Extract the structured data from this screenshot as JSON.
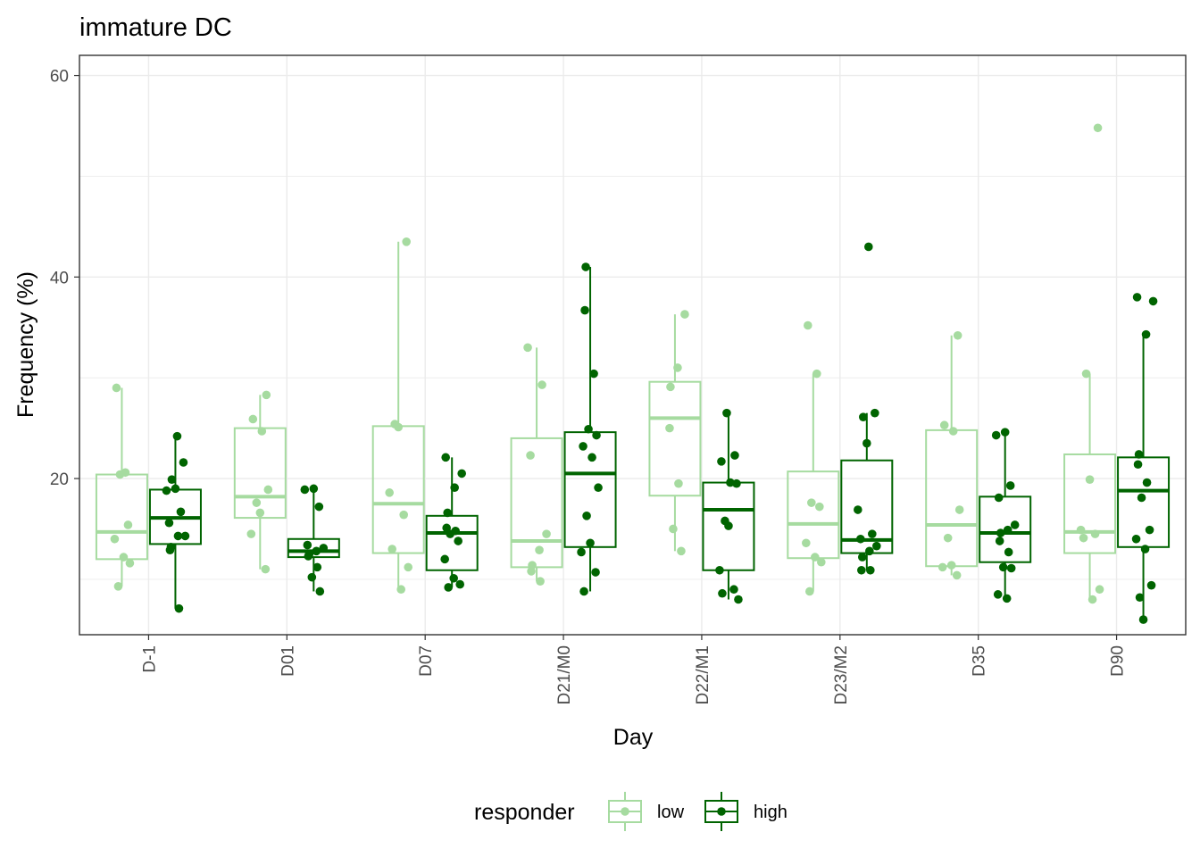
{
  "chart_data": {
    "type": "box",
    "title": "immature DC",
    "xlabel": "Day",
    "ylabel": "Frequency (%)",
    "ylim": [
      4.5,
      62
    ],
    "yticks": [
      "20",
      "40",
      "60"
    ],
    "categories": [
      "D-1",
      "D01",
      "D07",
      "D21/M0",
      "D22/M1",
      "D23/M2",
      "D35",
      "D90"
    ],
    "grid": true,
    "legend": {
      "title": "responder",
      "position": "bottom",
      "entries": [
        "low",
        "high"
      ]
    },
    "series": [
      {
        "name": "low",
        "color": "#a6dba0",
        "boxes": [
          {
            "q1": 12.0,
            "median": 14.7,
            "q3": 20.4,
            "whisker_low": 9.3,
            "whisker_high": 29.0
          },
          {
            "q1": 16.1,
            "median": 18.2,
            "q3": 25.0,
            "whisker_low": 11.0,
            "whisker_high": 28.3
          },
          {
            "q1": 12.6,
            "median": 17.5,
            "q3": 25.2,
            "whisker_low": 9.0,
            "whisker_high": 43.5
          },
          {
            "q1": 11.2,
            "median": 13.8,
            "q3": 24.0,
            "whisker_low": 9.8,
            "whisker_high": 33.0
          },
          {
            "q1": 18.3,
            "median": 26.0,
            "q3": 29.6,
            "whisker_low": 12.8,
            "whisker_high": 36.3
          },
          {
            "q1": 12.1,
            "median": 15.5,
            "q3": 20.7,
            "whisker_low": 8.8,
            "whisker_high": 30.4
          },
          {
            "q1": 11.3,
            "median": 15.4,
            "q3": 24.8,
            "whisker_low": 10.4,
            "whisker_high": 34.2
          },
          {
            "q1": 12.6,
            "median": 14.7,
            "q3": 22.4,
            "whisker_low": 8.0,
            "whisker_high": 30.4
          }
        ],
        "points": [
          [
            29.0,
            20.6,
            20.4,
            15.4,
            14.0,
            12.2,
            11.6,
            9.3
          ],
          [
            28.3,
            25.9,
            24.7,
            18.9,
            17.6,
            16.6,
            14.5,
            11.0
          ],
          [
            43.5,
            25.4,
            25.1,
            18.6,
            16.4,
            13.0,
            11.2,
            9.0
          ],
          [
            33.0,
            29.3,
            22.3,
            14.5,
            12.9,
            11.4,
            10.8,
            9.8
          ],
          [
            36.3,
            31.0,
            29.1,
            25.0,
            19.5,
            15.0,
            12.8
          ],
          [
            35.2,
            30.4,
            17.6,
            17.2,
            13.6,
            12.2,
            11.7,
            8.8
          ],
          [
            34.2,
            25.3,
            24.7,
            16.9,
            14.1,
            11.4,
            11.2,
            10.4
          ],
          [
            54.8,
            30.4,
            19.9,
            14.9,
            14.5,
            14.1,
            9.0,
            8.0
          ]
        ]
      },
      {
        "name": "high",
        "color": "#006400",
        "boxes": [
          {
            "q1": 13.5,
            "median": 16.1,
            "q3": 18.9,
            "whisker_low": 7.1,
            "whisker_high": 24.2
          },
          {
            "q1": 12.2,
            "median": 12.8,
            "q3": 14.0,
            "whisker_low": 8.8,
            "whisker_high": 19.0
          },
          {
            "q1": 10.9,
            "median": 14.6,
            "q3": 16.3,
            "whisker_low": 9.2,
            "whisker_high": 22.1
          },
          {
            "q1": 13.2,
            "median": 20.5,
            "q3": 24.6,
            "whisker_low": 8.8,
            "whisker_high": 41.0
          },
          {
            "q1": 10.9,
            "median": 16.9,
            "q3": 19.6,
            "whisker_low": 8.0,
            "whisker_high": 26.5
          },
          {
            "q1": 12.6,
            "median": 13.9,
            "q3": 21.8,
            "whisker_low": 10.9,
            "whisker_high": 26.5
          },
          {
            "q1": 11.7,
            "median": 14.6,
            "q3": 18.2,
            "whisker_low": 8.1,
            "whisker_high": 24.6
          },
          {
            "q1": 13.2,
            "median": 18.8,
            "q3": 22.1,
            "whisker_low": 6.0,
            "whisker_high": 34.3
          }
        ],
        "points": [
          [
            24.2,
            21.6,
            19.9,
            19.0,
            18.8,
            16.7,
            15.6,
            14.3,
            14.3,
            13.2,
            12.9,
            7.1
          ],
          [
            19.0,
            18.9,
            17.2,
            13.4,
            13.1,
            12.8,
            12.5,
            12.3,
            11.2,
            10.2,
            8.8
          ],
          [
            22.1,
            20.5,
            19.1,
            16.6,
            15.1,
            14.8,
            14.5,
            13.8,
            12.0,
            10.1,
            9.5,
            9.2
          ],
          [
            41.0,
            36.7,
            30.4,
            24.9,
            24.3,
            23.2,
            22.1,
            19.1,
            16.3,
            13.6,
            12.7,
            10.7,
            8.8
          ],
          [
            26.5,
            22.3,
            21.7,
            19.6,
            19.5,
            15.8,
            15.3,
            10.9,
            9.0,
            8.6,
            8.0
          ],
          [
            43.0,
            26.5,
            26.1,
            23.5,
            16.9,
            14.5,
            14.0,
            13.3,
            12.8,
            12.2,
            10.9,
            10.9
          ],
          [
            24.6,
            24.3,
            19.3,
            18.1,
            15.4,
            14.9,
            14.6,
            13.8,
            12.7,
            11.2,
            11.1,
            8.5,
            8.1
          ],
          [
            38.0,
            37.6,
            34.3,
            22.4,
            21.4,
            19.6,
            18.1,
            14.9,
            14.0,
            13.0,
            9.4,
            8.2,
            6.0
          ]
        ]
      }
    ]
  }
}
